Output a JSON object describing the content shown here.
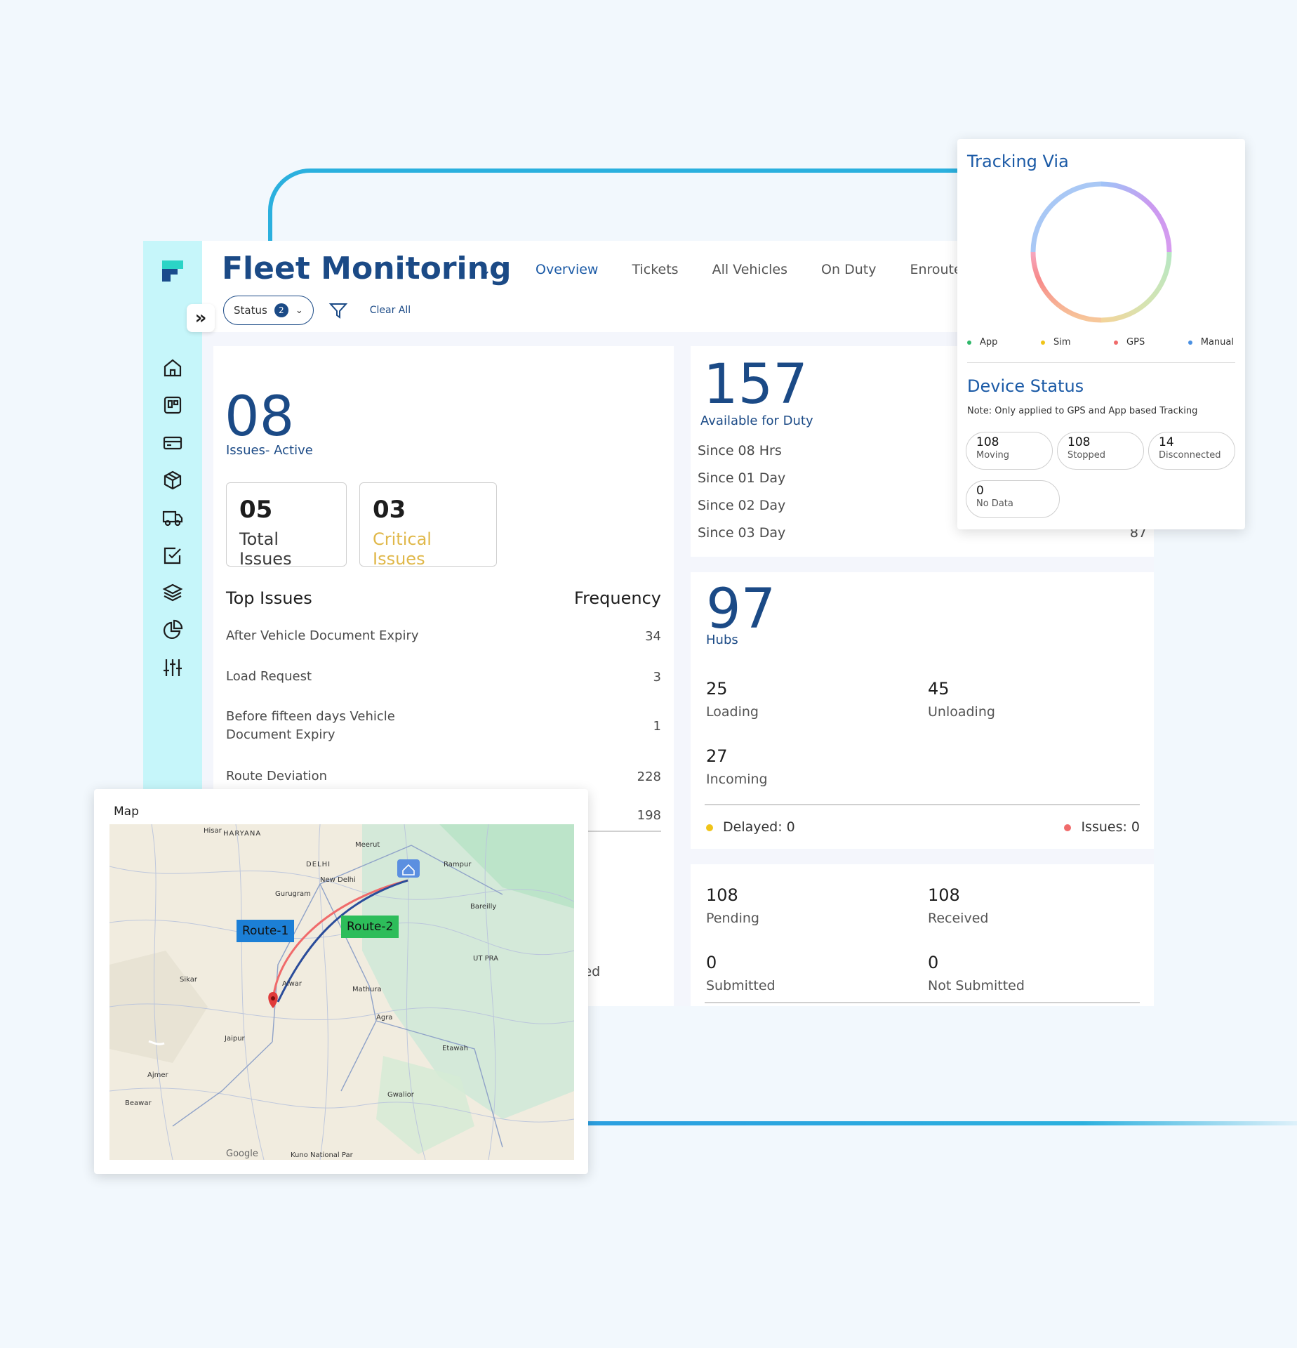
{
  "app": {
    "title": "Fleet Monitoring",
    "tabs": [
      "Overview",
      "Tickets",
      "All Vehicles",
      "On Duty",
      "Enroute F"
    ],
    "filter": {
      "status_label": "Status",
      "status_count": "2",
      "clear_all": "Clear All"
    }
  },
  "issues": {
    "active_count": "08",
    "active_label": "Issues- Active",
    "total_count": "05",
    "total_label": "Total Issues",
    "critical_count": "03",
    "critical_label": "Critical Issues",
    "top_issues_header": "Top Issues",
    "frequency_header": "Frequency",
    "rows": [
      {
        "name": "After Vehicle Document Expiry",
        "freq": "34"
      },
      {
        "name": "Load Request",
        "freq": "3"
      },
      {
        "name": "Before fifteen days Vehicle Document Expiry",
        "freq": "1"
      },
      {
        "name": "Route Deviation",
        "freq": "228"
      },
      {
        "name": "",
        "freq": "198"
      }
    ],
    "partial_text": "ted"
  },
  "duty": {
    "count": "157",
    "label": "Available for Duty",
    "rows": [
      {
        "name": "Since 08 Hrs",
        "value": ""
      },
      {
        "name": "Since 01 Day",
        "value": ""
      },
      {
        "name": "Since 02 Day",
        "value": ""
      },
      {
        "name": "Since 03 Day",
        "value": "87"
      }
    ]
  },
  "hubs": {
    "count": "97",
    "label": "Hubs",
    "loading": "25",
    "loading_label": "Loading",
    "unloading": "45",
    "unloading_label": "Unloading",
    "incoming": "27",
    "incoming_label": "Incoming",
    "delayed": "Delayed: 0",
    "issues": "Issues: 0"
  },
  "documents": {
    "pending": "108",
    "pending_label": "Pending",
    "received": "108",
    "received_label": "Received",
    "submitted": "0",
    "submitted_label": "Submitted",
    "not_submitted": "0",
    "not_submitted_label": "Not Submitted"
  },
  "tracking": {
    "title": "Tracking Via",
    "legend": [
      {
        "label": "App",
        "color": "#2fb86a"
      },
      {
        "label": "Sim",
        "color": "#f0c419"
      },
      {
        "label": "GPS",
        "color": "#f06b6b"
      },
      {
        "label": "Manual",
        "color": "#4a90e2"
      }
    ],
    "device_status_title": "Device Status",
    "note": "Note: Only applied to GPS and App based Tracking",
    "devices": [
      {
        "num": "108",
        "label": "Moving"
      },
      {
        "num": "108",
        "label": "Stopped"
      },
      {
        "num": "14",
        "label": "Disconnected"
      },
      {
        "num": "0",
        "label": "No Data"
      }
    ]
  },
  "map": {
    "title": "Map",
    "route1": "Route-1",
    "route2": "Route-2",
    "places": [
      "HARYANA",
      "Hisar",
      "Meerut",
      "DELHI",
      "New Delhi",
      "Gurugram",
      "Rampur",
      "Bareilly",
      "Sikar",
      "Alwar",
      "Mathura",
      "Agra",
      "Jaipur",
      "Ajmer",
      "Beawar",
      "Etawah",
      "Gwalior",
      "Kuno National Par",
      "UT PRA"
    ],
    "attribution": "Google"
  },
  "colors": {
    "primary": "#1b4a86",
    "accent": "#2bb0de",
    "critical": "#e0b84a",
    "sidebar": "#c6f6fa"
  }
}
